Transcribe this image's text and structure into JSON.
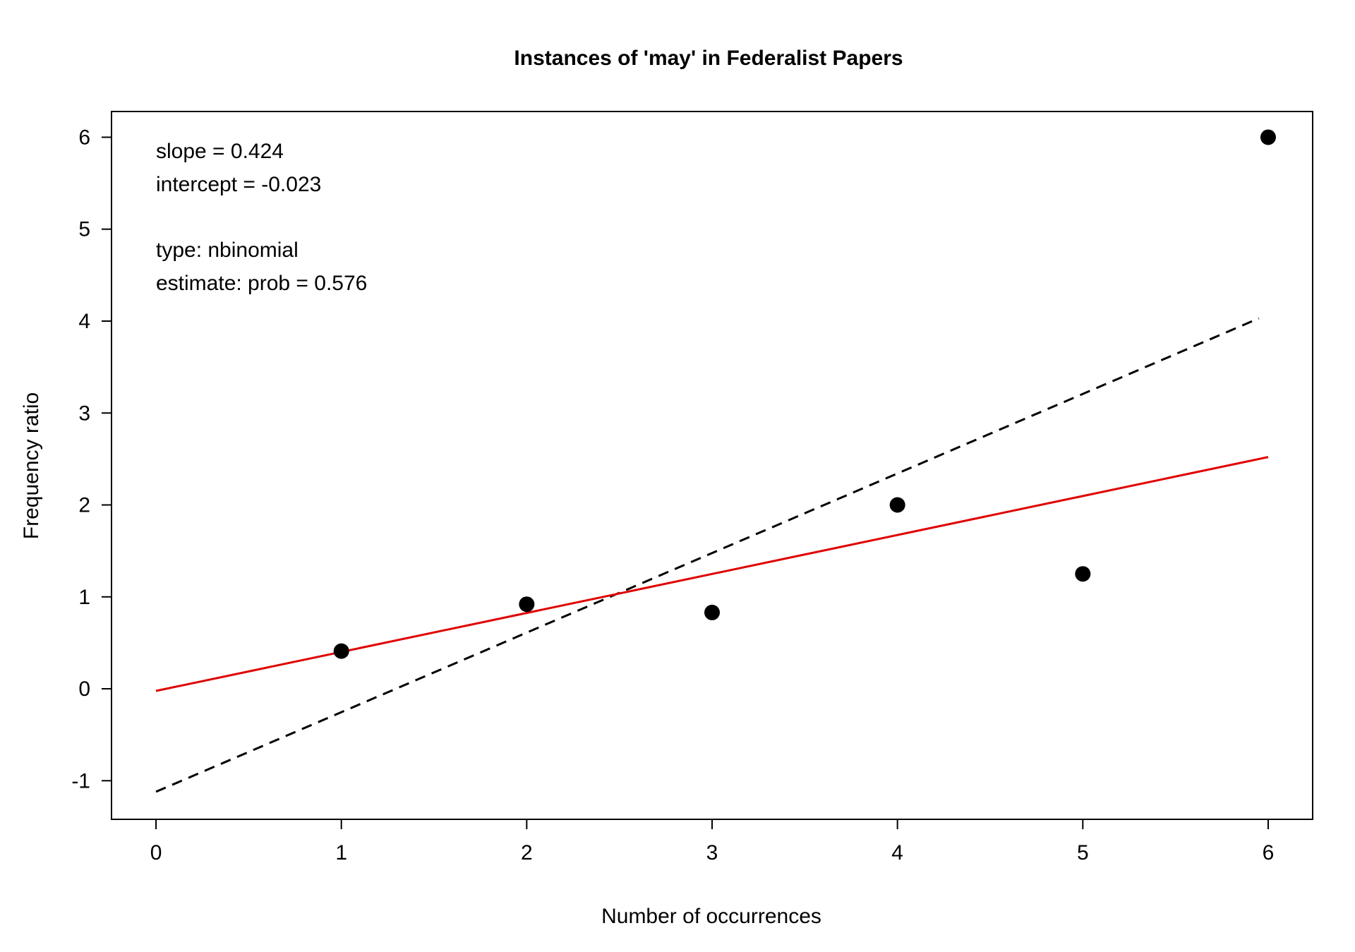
{
  "chart_data": {
    "type": "scatter",
    "title": "Instances of 'may' in Federalist Papers",
    "xlabel": "Number of occurrences",
    "ylabel": "Frequency ratio",
    "xlim": [
      -0.24,
      6.24
    ],
    "ylim": [
      -1.42,
      6.28
    ],
    "xticks": [
      0,
      1,
      2,
      3,
      4,
      5,
      6
    ],
    "yticks": [
      -1,
      0,
      1,
      2,
      3,
      4,
      5,
      6
    ],
    "grid": false,
    "points": {
      "x": [
        1,
        2,
        3,
        4,
        5,
        6
      ],
      "y": [
        0.41,
        0.92,
        0.83,
        2.0,
        1.25,
        6.0
      ],
      "color": "#000000"
    },
    "lines": [
      {
        "style": "dashed",
        "color": "#000000",
        "x": [
          0,
          5.95
        ],
        "y": [
          -1.12,
          4.03
        ]
      },
      {
        "style": "solid",
        "color": "#e00000",
        "x": [
          0,
          6
        ],
        "y": [
          -0.023,
          2.521
        ]
      }
    ],
    "annotations": [
      "slope = 0.424",
      "intercept = -0.023",
      "type: nbinomial",
      "estimate: prob = 0.576"
    ]
  }
}
